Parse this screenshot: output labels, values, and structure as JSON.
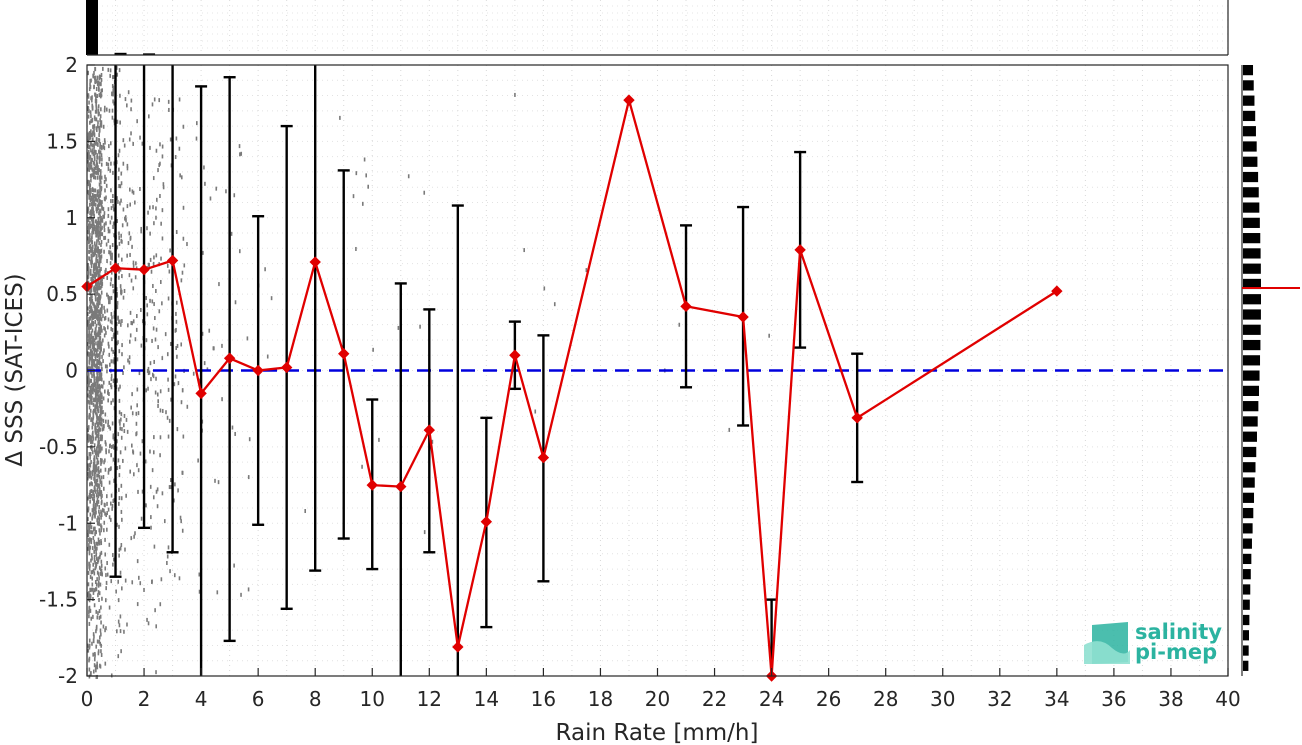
{
  "chart_data": {
    "type": "line",
    "xlabel": "Rain Rate [mm/h]",
    "ylabel": "Δ SSS (SAT-ICES)",
    "xlim": [
      0,
      40
    ],
    "ylim": [
      -2,
      2
    ],
    "x_ticks": [
      0,
      2,
      4,
      6,
      8,
      10,
      12,
      14,
      16,
      18,
      20,
      22,
      24,
      26,
      28,
      30,
      32,
      34,
      36,
      38,
      40
    ],
    "y_ticks": [
      -2,
      -1.5,
      -1,
      -0.5,
      0,
      0.5,
      1,
      1.5,
      2
    ],
    "y_tick_labels": [
      "-2",
      "-1.5",
      "-1",
      "-0.5",
      "0",
      "0.5",
      "1",
      "1.5",
      "2"
    ],
    "grid": true,
    "reference_line": {
      "y": 0,
      "style": "dashed",
      "color": "#0000dd"
    },
    "series": [
      {
        "color": "#e00000",
        "marker": "diamond",
        "points": [
          {
            "x": 0,
            "y": 0.55,
            "lo": null,
            "hi": null
          },
          {
            "x": 1,
            "y": 0.67,
            "lo": -1.35,
            "hi": 2.0
          },
          {
            "x": 2,
            "y": 0.66,
            "lo": -1.03,
            "hi": 2.0
          },
          {
            "x": 3,
            "y": 0.72,
            "lo": -1.19,
            "hi": 2.0
          },
          {
            "x": 4,
            "y": -0.15,
            "lo": -2.0,
            "hi": 1.86
          },
          {
            "x": 5,
            "y": 0.08,
            "lo": -1.77,
            "hi": 1.92
          },
          {
            "x": 6,
            "y": 0.0,
            "lo": -1.01,
            "hi": 1.01
          },
          {
            "x": 7,
            "y": 0.02,
            "lo": -1.56,
            "hi": 1.6
          },
          {
            "x": 8,
            "y": 0.71,
            "lo": -1.31,
            "hi": 2.0
          },
          {
            "x": 9,
            "y": 0.11,
            "lo": -1.1,
            "hi": 1.31
          },
          {
            "x": 10,
            "y": -0.75,
            "lo": -1.3,
            "hi": -0.19
          },
          {
            "x": 11,
            "y": -0.76,
            "lo": -2.0,
            "hi": 0.57
          },
          {
            "x": 12,
            "y": -0.39,
            "lo": -1.19,
            "hi": 0.4
          },
          {
            "x": 13,
            "y": -1.81,
            "lo": -2.0,
            "hi": 1.08
          },
          {
            "x": 14,
            "y": -0.99,
            "lo": -1.68,
            "hi": -0.31
          },
          {
            "x": 15,
            "y": 0.1,
            "lo": -0.12,
            "hi": 0.32
          },
          {
            "x": 16,
            "y": -0.57,
            "lo": -1.38,
            "hi": 0.23
          },
          {
            "x": 19,
            "y": 1.77,
            "lo": null,
            "hi": null
          },
          {
            "x": 21,
            "y": 0.42,
            "lo": -0.11,
            "hi": 0.95
          },
          {
            "x": 23,
            "y": 0.35,
            "lo": -0.36,
            "hi": 1.07
          },
          {
            "x": 24,
            "y": -2.0,
            "lo": -2.0,
            "hi": -1.5
          },
          {
            "x": 25,
            "y": 0.79,
            "lo": 0.15,
            "hi": 1.43
          },
          {
            "x": 27,
            "y": -0.31,
            "lo": -0.73,
            "hi": 0.11
          },
          {
            "x": 34,
            "y": 0.52,
            "lo": null,
            "hi": null
          }
        ]
      }
    ],
    "marginal_top": {
      "bins": [
        0,
        1,
        2
      ],
      "heights": [
        1.0,
        0.04,
        0.03
      ]
    },
    "marginal_right": {
      "mean_y": 0.54
    }
  },
  "logo": {
    "line1": "salinity",
    "line2": "pi-mep"
  }
}
